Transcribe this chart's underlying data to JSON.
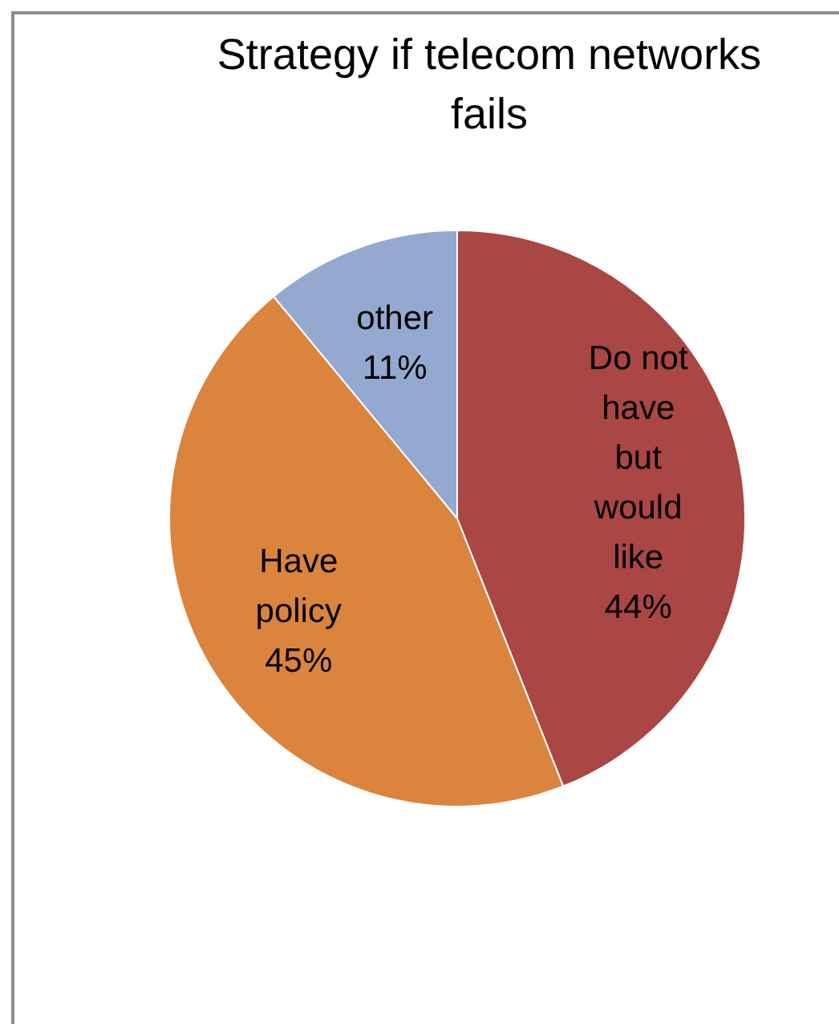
{
  "chart_data": {
    "type": "pie",
    "title": "Strategy if telecom networks fails",
    "categories": [
      "Do not have but would like",
      "Have policy",
      "other"
    ],
    "values": [
      44,
      45,
      11
    ],
    "colors": [
      "#aa4643",
      "#db843d",
      "#93a9cf"
    ],
    "value_labels": [
      "44%",
      "45%",
      "11%"
    ],
    "legend": false
  }
}
